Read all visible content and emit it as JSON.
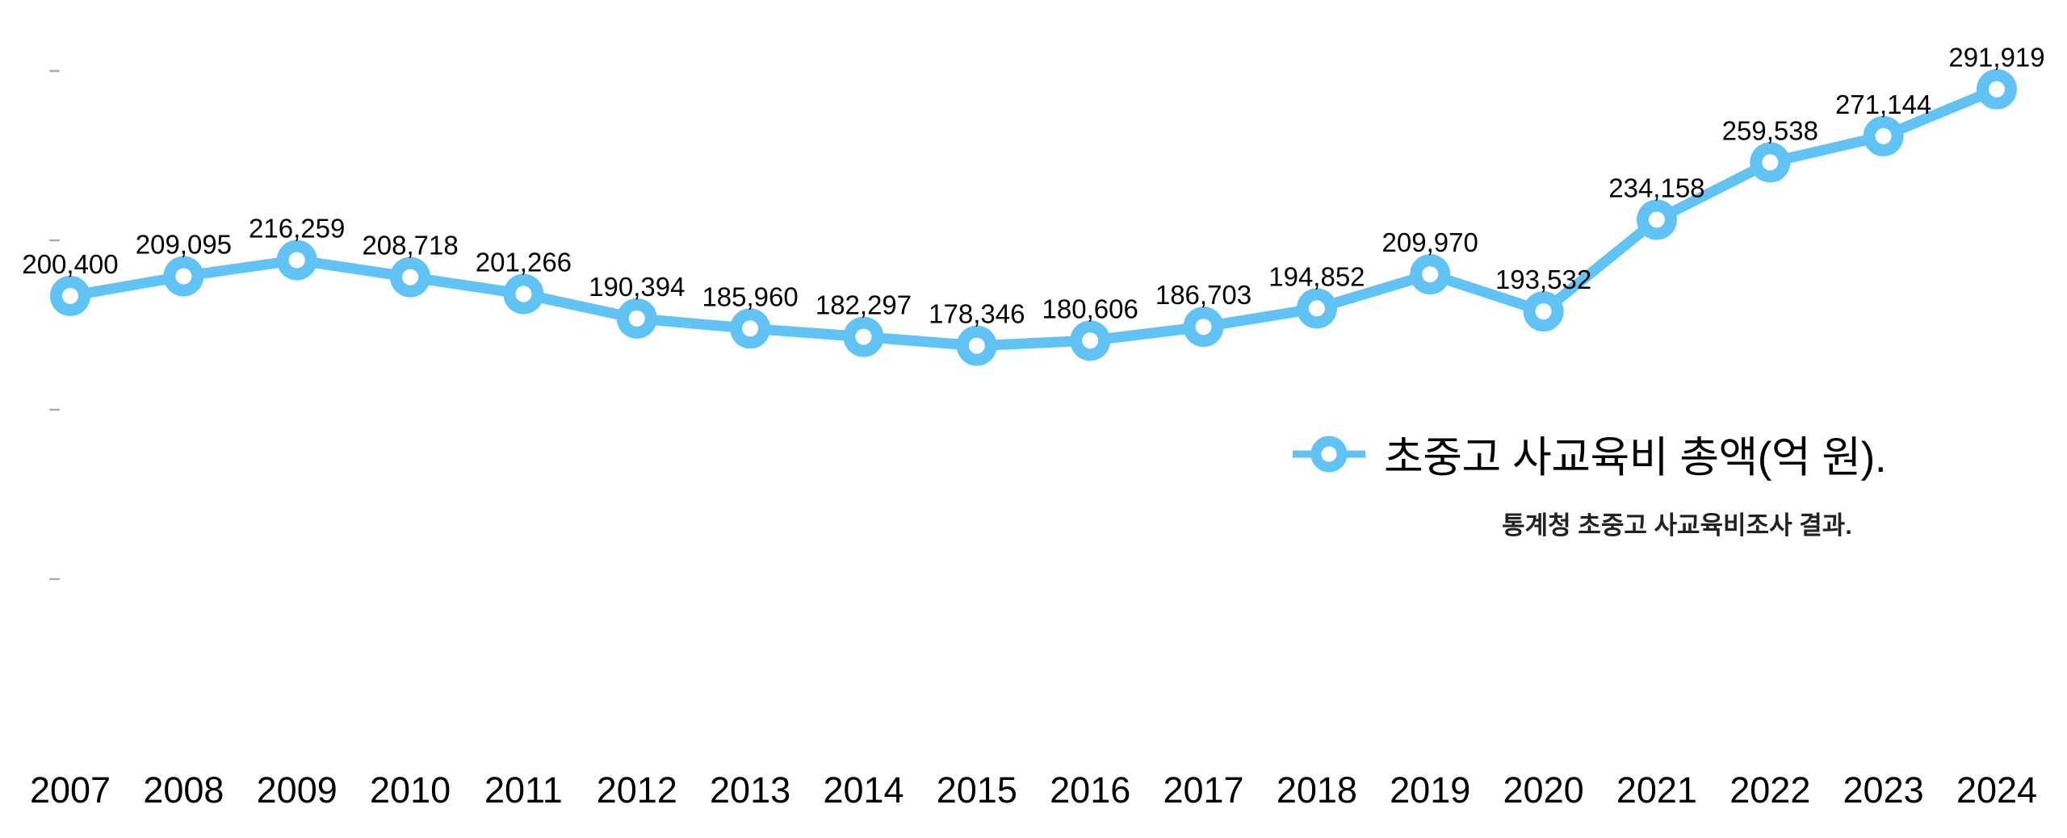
{
  "chart_data": {
    "type": "line",
    "title": "",
    "categories": [
      "2007",
      "2008",
      "2009",
      "2010",
      "2011",
      "2012",
      "2013",
      "2014",
      "2015",
      "2016",
      "2017",
      "2018",
      "2019",
      "2020",
      "2021",
      "2022",
      "2023",
      "2024"
    ],
    "series": [
      {
        "name": "초중고 사교육비 총액(억 원).",
        "values": [
          200400,
          209095,
          216259,
          208718,
          201266,
          190394,
          185960,
          182297,
          178346,
          180606,
          186703,
          194852,
          209970,
          193532,
          234158,
          259538,
          271144,
          291919
        ]
      }
    ],
    "data_labels_visible": true,
    "subtitle": "통계청 초중고 사교육비조사 결과.",
    "legend": {
      "label": "초중고 사교육비 총액(억 원).",
      "position": "center-right",
      "marker": "donut-circle-on-line"
    },
    "x_axis": {
      "labels_visible": true
    },
    "y_axis": {
      "ticks": [
        75000,
        150000,
        225000,
        300000
      ],
      "labels_visible": false
    },
    "grid": false,
    "colors": {
      "line": "#61c3f3",
      "marker_fill": "#61c3f3",
      "marker_hole": "#ffffff",
      "data_label_text": "#000000",
      "axis_label_text": "#000000",
      "axis_tick": "#ababab",
      "subtitle_text": "#222222",
      "background": "#ffffff"
    }
  }
}
